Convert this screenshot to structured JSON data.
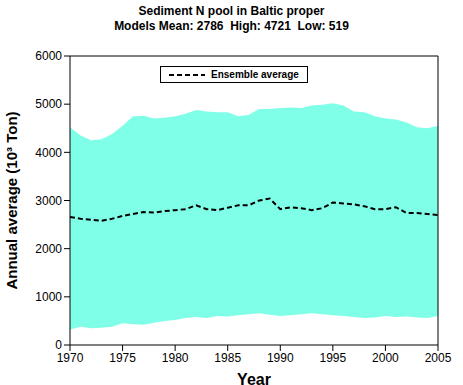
{
  "chart_data": {
    "type": "line",
    "title": "Sediment N pool in Baltic proper",
    "subtitle": "Models Mean: 2786  High: 4721  Low: 519",
    "x_label": "Year",
    "y_label": "Annual average (10³ Ton)",
    "x": [
      1970,
      1971,
      1972,
      1973,
      1974,
      1975,
      1976,
      1977,
      1978,
      1979,
      1980,
      1981,
      1982,
      1983,
      1984,
      1985,
      1986,
      1987,
      1988,
      1989,
      1990,
      1991,
      1992,
      1993,
      1994,
      1995,
      1996,
      1997,
      1998,
      1999,
      2000,
      2001,
      2002,
      2003,
      2004,
      2005
    ],
    "series": [
      {
        "name": "Ensemble average",
        "color": "#000000",
        "line_style": "dashed",
        "values": [
          2660,
          2620,
          2600,
          2580,
          2620,
          2680,
          2720,
          2760,
          2750,
          2780,
          2800,
          2820,
          2900,
          2820,
          2800,
          2850,
          2900,
          2900,
          3000,
          3040,
          2820,
          2860,
          2840,
          2800,
          2840,
          2960,
          2940,
          2920,
          2880,
          2820,
          2820,
          2860,
          2740,
          2740,
          2720,
          2700
        ]
      }
    ],
    "band": {
      "color": "#80ffe8",
      "low": [
        320,
        380,
        350,
        360,
        380,
        450,
        430,
        420,
        460,
        500,
        520,
        560,
        580,
        560,
        600,
        590,
        620,
        640,
        660,
        630,
        600,
        620,
        640,
        660,
        640,
        620,
        600,
        580,
        560,
        570,
        600,
        580,
        590,
        570,
        560,
        600
      ],
      "high": [
        4520,
        4350,
        4250,
        4270,
        4380,
        4550,
        4750,
        4760,
        4700,
        4720,
        4750,
        4800,
        4880,
        4850,
        4830,
        4830,
        4750,
        4780,
        4900,
        4900,
        4920,
        4930,
        4920,
        4970,
        4990,
        5020,
        4970,
        4850,
        4830,
        4750,
        4700,
        4680,
        4620,
        4520,
        4500,
        4550
      ]
    },
    "xlim": [
      1970,
      2005
    ],
    "xticks": [
      1970,
      1975,
      1980,
      1985,
      1990,
      1995,
      2000,
      2005
    ],
    "ylim": [
      0,
      6000
    ],
    "yticks": [
      0,
      1000,
      2000,
      3000,
      4000,
      5000,
      6000
    ],
    "legend": "top",
    "grid": false
  }
}
